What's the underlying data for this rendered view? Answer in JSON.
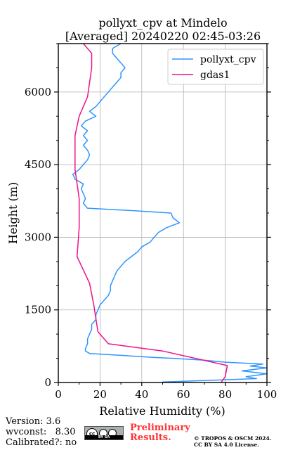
{
  "chart_data": {
    "type": "line",
    "title": "pollyxt_cpv at Mindelo",
    "subtitle": "[Averaged] 20240220 02:45-03:26",
    "xlabel": "Relative Humidity (%)",
    "ylabel": "Height (m)",
    "xlim": [
      0,
      100
    ],
    "ylim": [
      0,
      7000
    ],
    "xticks": [
      "0",
      "20",
      "40",
      "60",
      "80",
      "100"
    ],
    "yticks": [
      "0",
      "1500",
      "3000",
      "4500",
      "6000"
    ],
    "grid": true,
    "legend_position": "top-right",
    "series": [
      {
        "name": "pollyxt_cpv",
        "color": "#3095ff",
        "y": [
          10,
          80,
          120,
          180,
          240,
          300,
          340,
          380,
          420,
          460,
          480,
          500,
          520,
          560,
          600,
          650,
          700,
          800,
          900,
          1000,
          1100,
          1200,
          1300,
          1400,
          1500,
          1600,
          1700,
          1800,
          1900,
          2000,
          2100,
          2200,
          2300,
          2400,
          2500,
          2600,
          2700,
          2800,
          2900,
          3000,
          3100,
          3200,
          3300,
          3400,
          3500,
          3550,
          3600,
          3700,
          3800,
          3900,
          4000,
          4100,
          4200,
          4300,
          4400,
          4500,
          4600,
          4700,
          4800,
          4900,
          5000,
          5100,
          5200,
          5300,
          5400,
          5500,
          5600,
          5700,
          5800,
          5900,
          6000,
          6100,
          6200,
          6300,
          6400,
          6500,
          6600,
          6700,
          6800,
          6900,
          7000
        ],
        "x": [
          50,
          95,
          90,
          100,
          88,
          100,
          92,
          98,
          80,
          70,
          62,
          55,
          45,
          30,
          15,
          13,
          13,
          14,
          14,
          15,
          16,
          16,
          18,
          18,
          19,
          20,
          22,
          24,
          25,
          25,
          26,
          27,
          28,
          30,
          32,
          35,
          38,
          40,
          44,
          46,
          48,
          52,
          58,
          55,
          54,
          36,
          14,
          12,
          13,
          12,
          11,
          12,
          8,
          7,
          10,
          12,
          14,
          15,
          14,
          12,
          14,
          12,
          14,
          11,
          13,
          18,
          15,
          18,
          20,
          22,
          24,
          26,
          28,
          30,
          30,
          32,
          30,
          28,
          26,
          26,
          30
        ]
      },
      {
        "name": "gdas1",
        "color": "#ee1289",
        "y": [
          0,
          120,
          350,
          650,
          800,
          1050,
          1600,
          2050,
          2600,
          3200,
          3800,
          4400,
          5100,
          5500,
          5900,
          6500,
          6800,
          7000
        ],
        "x": [
          78,
          80,
          81,
          50,
          24,
          19,
          17,
          15,
          9,
          10,
          10,
          8,
          8,
          10,
          14,
          16,
          16,
          12
        ]
      }
    ]
  },
  "footer": {
    "version": "Version: 3.6",
    "wvconst": "wvconst:   8.30",
    "calibrated": "Calibrated?: no",
    "prelim_line1": "Preliminary",
    "prelim_line2": "Results.",
    "copyright1": "© TROPOS & OSCM 2024.",
    "copyright2": "CC BY SA 4.0 License."
  }
}
